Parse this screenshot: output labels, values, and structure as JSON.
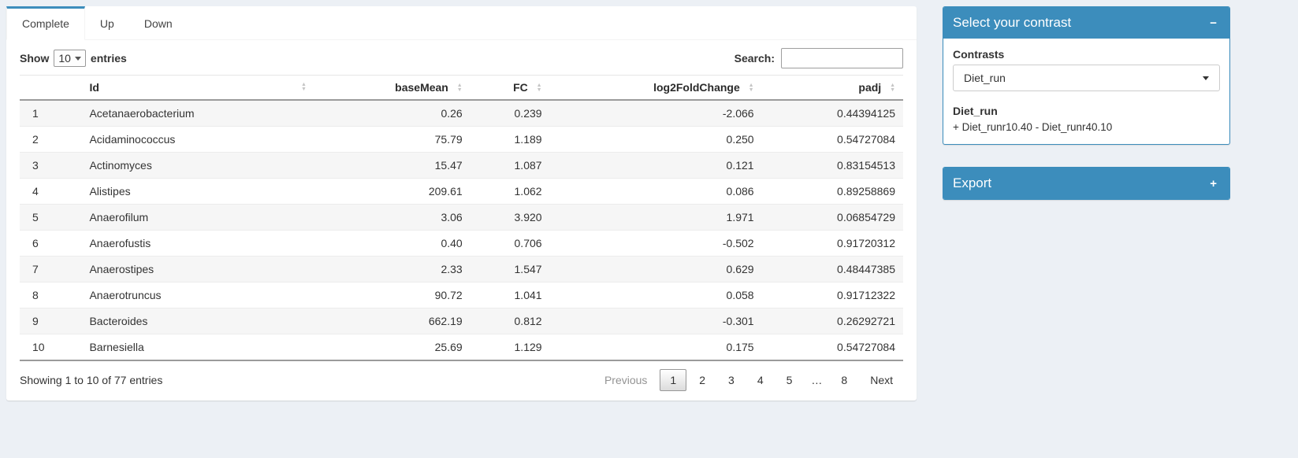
{
  "colors": {
    "accent": "#3c8dbc",
    "page_background": "#ecf0f5"
  },
  "icons": {
    "sort_asc": "▲",
    "sort_desc": "▼",
    "collapse": "−",
    "expand": "+",
    "dropdown_caret": "chevron-down"
  },
  "tabs": [
    {
      "label": "Complete",
      "active": true
    },
    {
      "label": "Up",
      "active": false
    },
    {
      "label": "Down",
      "active": false
    }
  ],
  "table_controls": {
    "show_label": "Show",
    "page_length": "10",
    "entries_label": "entries",
    "search_label": "Search:",
    "search_value": ""
  },
  "table": {
    "headers": [
      "Id",
      "baseMean",
      "FC",
      "log2FoldChange",
      "padj"
    ],
    "rows": [
      {
        "index": "1",
        "id": "Acetanaerobacterium",
        "baseMean": "0.26",
        "fc": "0.239",
        "log2fc": "-2.066",
        "padj": "0.44394125"
      },
      {
        "index": "2",
        "id": "Acidaminococcus",
        "baseMean": "75.79",
        "fc": "1.189",
        "log2fc": "0.250",
        "padj": "0.54727084"
      },
      {
        "index": "3",
        "id": "Actinomyces",
        "baseMean": "15.47",
        "fc": "1.087",
        "log2fc": "0.121",
        "padj": "0.83154513"
      },
      {
        "index": "4",
        "id": "Alistipes",
        "baseMean": "209.61",
        "fc": "1.062",
        "log2fc": "0.086",
        "padj": "0.89258869"
      },
      {
        "index": "5",
        "id": "Anaerofilum",
        "baseMean": "3.06",
        "fc": "3.920",
        "log2fc": "1.971",
        "padj": "0.06854729"
      },
      {
        "index": "6",
        "id": "Anaerofustis",
        "baseMean": "0.40",
        "fc": "0.706",
        "log2fc": "-0.502",
        "padj": "0.91720312"
      },
      {
        "index": "7",
        "id": "Anaerostipes",
        "baseMean": "2.33",
        "fc": "1.547",
        "log2fc": "0.629",
        "padj": "0.48447385"
      },
      {
        "index": "8",
        "id": "Anaerotruncus",
        "baseMean": "90.72",
        "fc": "1.041",
        "log2fc": "0.058",
        "padj": "0.91712322"
      },
      {
        "index": "9",
        "id": "Bacteroides",
        "baseMean": "662.19",
        "fc": "0.812",
        "log2fc": "-0.301",
        "padj": "0.26292721"
      },
      {
        "index": "10",
        "id": "Barnesiella",
        "baseMean": "25.69",
        "fc": "1.129",
        "log2fc": "0.175",
        "padj": "0.54727084"
      }
    ]
  },
  "table_footer": {
    "info": "Showing 1 to 10 of 77 entries",
    "pagination": [
      {
        "label": "Previous",
        "key": "previous",
        "state": "disabled"
      },
      {
        "label": "1",
        "key": "page-1",
        "state": "active"
      },
      {
        "label": "2",
        "key": "page-2",
        "state": "normal"
      },
      {
        "label": "3",
        "key": "page-3",
        "state": "normal"
      },
      {
        "label": "4",
        "key": "page-4",
        "state": "normal"
      },
      {
        "label": "5",
        "key": "page-5",
        "state": "normal"
      },
      {
        "label": "…",
        "key": "ellipsis",
        "state": "ellipsis"
      },
      {
        "label": "8",
        "key": "page-8",
        "state": "normal"
      },
      {
        "label": "Next",
        "key": "next",
        "state": "normal"
      }
    ]
  },
  "sidebar": {
    "contrast_box": {
      "title": "Select your contrast",
      "collapse_icon": "−",
      "contrasts_label": "Contrasts",
      "selected_contrast": "Diet_run",
      "contrast_name": "Diet_run",
      "contrast_formula": "+ Diet_runr10.40 - Diet_runr40.10"
    },
    "export_box": {
      "title": "Export",
      "collapse_icon": "+"
    }
  }
}
